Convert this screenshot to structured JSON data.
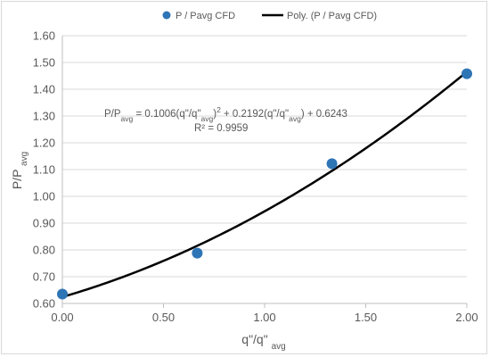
{
  "chart_data": {
    "type": "scatter",
    "xlabel": "q\"/q\"avg",
    "ylabel": "P/Pavg",
    "xlim": [
      0,
      2
    ],
    "ylim": [
      0.6,
      1.6
    ],
    "x_ticks": [
      "0.00",
      "0.50",
      "1.00",
      "1.50",
      "2.00"
    ],
    "y_ticks": [
      "0.60",
      "0.70",
      "0.80",
      "0.90",
      "1.00",
      "1.10",
      "1.20",
      "1.30",
      "1.40",
      "1.50",
      "1.60"
    ],
    "grid": "horizontal",
    "legend_position": "top",
    "series": [
      {
        "name": "P / Pavg CFD",
        "marker": "circle",
        "color": "#2e75b6",
        "x": [
          0.0,
          0.667,
          1.333,
          2.0
        ],
        "y": [
          0.635,
          0.788,
          1.122,
          1.458
        ]
      }
    ],
    "trendline": {
      "name": "Poly. (P / Pavg CFD)",
      "color": "#000000",
      "degree": 2,
      "coefficients": [
        0.1006,
        0.2192,
        0.6243
      ],
      "equation_parts": [
        "P/P",
        "avg",
        " = 0.1006(q\"/q\"",
        "avg",
        ")",
        "2",
        " + 0.2192(q\"/q\"",
        "avg",
        ") + 0.6243"
      ],
      "r2_label": "R² = 0.9959"
    }
  }
}
